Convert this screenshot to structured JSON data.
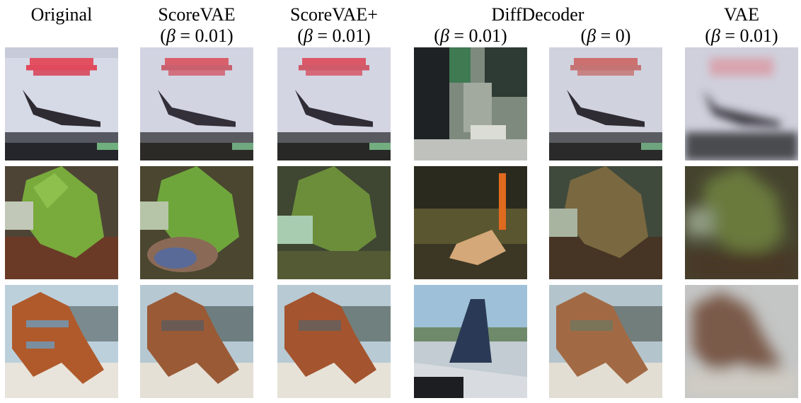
{
  "columns": [
    {
      "key": "original",
      "title": "Original",
      "beta": ""
    },
    {
      "key": "scorevae",
      "title": "ScoreVAE",
      "beta": "(β = 0.01)"
    },
    {
      "key": "scorevaeplus",
      "title": "ScoreVAE+",
      "beta": "(β = 0.01)"
    },
    {
      "key": "diff1",
      "title": "DiffDecoder",
      "beta": "(β = 0.01)"
    },
    {
      "key": "diff0",
      "title": "",
      "beta": "(β = 0)"
    },
    {
      "key": "vae",
      "title": "VAE",
      "beta": "(β = 0.01)"
    }
  ],
  "rows": [
    {
      "subject": "airplane-poster"
    },
    {
      "subject": "frog"
    },
    {
      "subject": "horse"
    }
  ],
  "colors": {
    "poster_bg": "#d9dbe8",
    "poster_text": "#e0485a",
    "plane": "#2c2a30",
    "frog_green": "#76a83a",
    "frog_bg": "#5a4a36",
    "horse_brown": "#a8582c",
    "horse_bg": "#c9c2b4",
    "sky": "#a9c6d8"
  }
}
